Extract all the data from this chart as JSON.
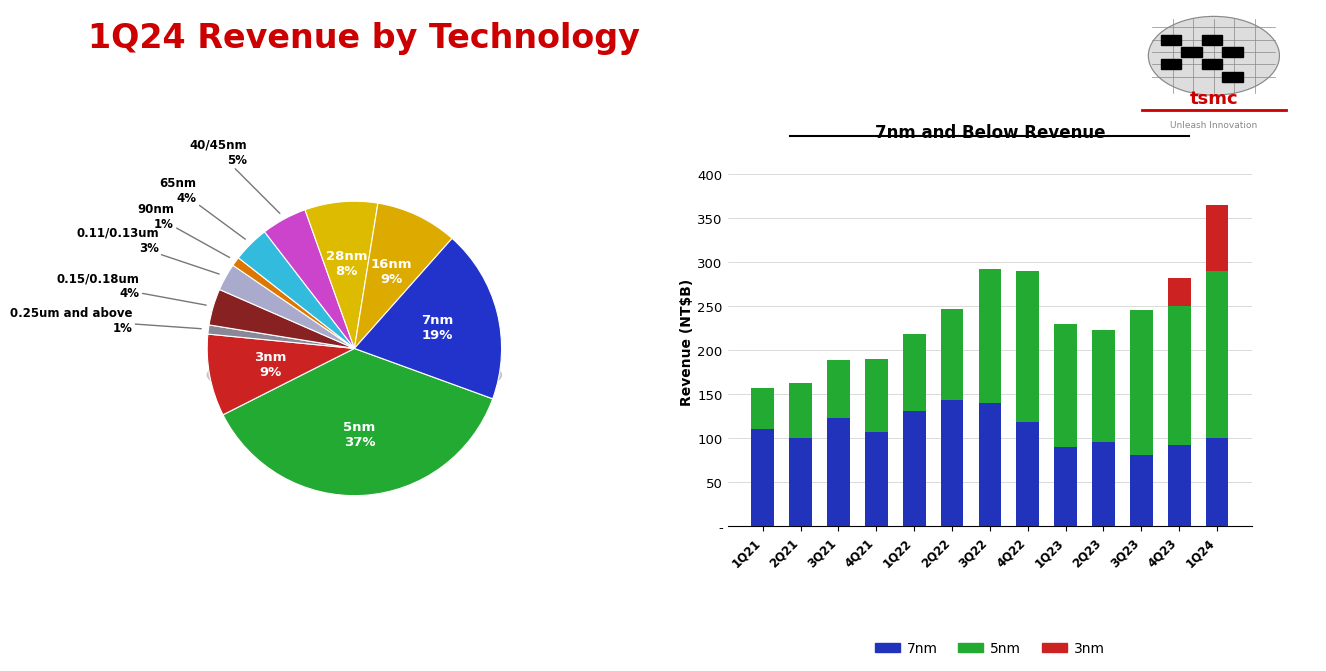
{
  "title": "1Q24 Revenue by Technology",
  "title_color": "#cc0000",
  "background_color": "#ffffff",
  "pie_labels": [
    "5nm",
    "3nm",
    "0.25um and above",
    "0.15/0.18um",
    "0.11/0.13um",
    "90nm",
    "65nm",
    "40/45nm",
    "28nm",
    "16nm",
    "7nm"
  ],
  "pie_sizes": [
    37,
    9,
    1,
    4,
    3,
    1,
    4,
    5,
    8,
    9,
    19
  ],
  "pie_colors": [
    "#22aa33",
    "#cc2222",
    "#888899",
    "#882222",
    "#aaaacc",
    "#dd7700",
    "#33bbdd",
    "#cc44cc",
    "#ddbb00",
    "#ddaa00",
    "#2233cc"
  ],
  "pie_label_colors_inside": [
    "white",
    "white",
    "black",
    "black",
    "black",
    "black",
    "black",
    "black",
    "white",
    "white",
    "white"
  ],
  "bar_quarters": [
    "1Q21",
    "2Q21",
    "3Q21",
    "4Q21",
    "1Q22",
    "2Q22",
    "3Q22",
    "4Q22",
    "1Q23",
    "2Q23",
    "3Q23",
    "4Q23",
    "1Q24"
  ],
  "bar_7nm": [
    110,
    100,
    122,
    107,
    130,
    143,
    140,
    118,
    90,
    95,
    80,
    92,
    100
  ],
  "bar_5nm": [
    47,
    62,
    67,
    83,
    88,
    103,
    152,
    172,
    140,
    128,
    165,
    158,
    190
  ],
  "bar_3nm": [
    0,
    0,
    0,
    0,
    0,
    0,
    0,
    0,
    0,
    0,
    0,
    32,
    75
  ],
  "bar_color_7nm": "#2233bb",
  "bar_color_5nm": "#22aa33",
  "bar_color_3nm": "#cc2222",
  "bar_title": "7nm and Below Revenue",
  "bar_ylabel": "Revenue (NT$B)",
  "bar_ylim": [
    0,
    420
  ],
  "bar_yticks": [
    0,
    50,
    100,
    150,
    200,
    250,
    300,
    350,
    400
  ],
  "tsmc_tagline": "Unleash Innovation"
}
